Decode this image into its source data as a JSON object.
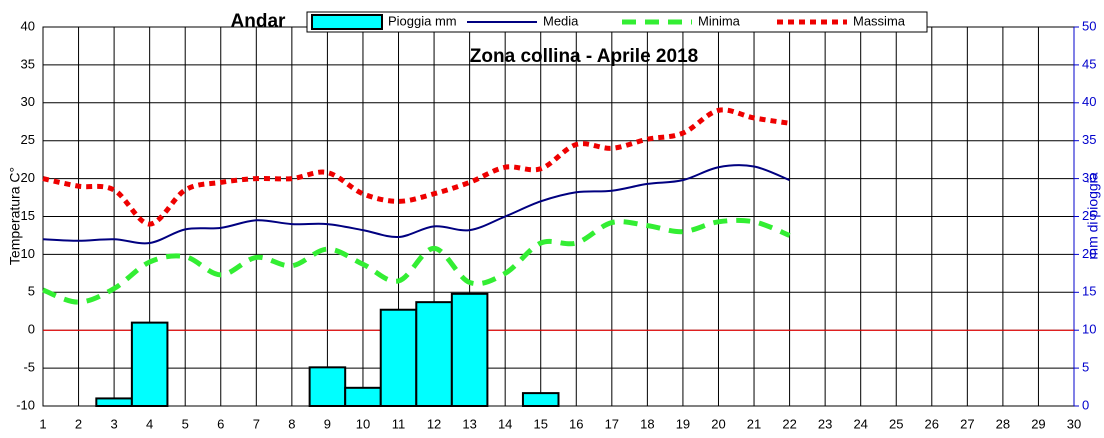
{
  "chart_data": {
    "type": "combo",
    "title": "Andar",
    "subtitle": "Zona collina - Aprile 2018",
    "ylabel": "Temperatura C°",
    "y2label": "mm di pioggia",
    "x": [
      1,
      2,
      3,
      4,
      5,
      6,
      7,
      8,
      9,
      10,
      11,
      12,
      13,
      14,
      15,
      16,
      17,
      18,
      19,
      20,
      21,
      22,
      23,
      24,
      25,
      26,
      27,
      28,
      29,
      30
    ],
    "xlim": [
      1,
      30
    ],
    "ylim": [
      -10,
      40
    ],
    "yticks": [
      -10,
      -5,
      0,
      5,
      10,
      15,
      20,
      25,
      30,
      35,
      40
    ],
    "y2lim": [
      0,
      50
    ],
    "y2ticks": [
      0,
      5,
      10,
      15,
      20,
      25,
      30,
      35,
      40,
      45,
      50
    ],
    "grid": true,
    "zero_line_color": "#ff0000",
    "legend": "top",
    "series": [
      {
        "name": "Pioggia mm",
        "kind": "bar",
        "axis": "y2",
        "color": "#00ffff",
        "values": [
          null,
          null,
          1,
          11,
          null,
          null,
          null,
          null,
          5.1,
          2.4,
          12.7,
          13.7,
          14.8,
          null,
          1.7,
          null,
          null,
          null,
          null,
          null,
          null,
          null,
          null,
          null,
          null,
          null,
          null,
          null,
          null,
          null
        ]
      },
      {
        "name": "Media",
        "kind": "line",
        "color": "#000080",
        "values": [
          12,
          11.8,
          12,
          11.5,
          13.3,
          13.5,
          14.5,
          14,
          14,
          13.2,
          12.3,
          13.7,
          13.2,
          15,
          17,
          18.2,
          18.4,
          19.3,
          19.8,
          21.5,
          21.6,
          19.8,
          null,
          null,
          null,
          null,
          null,
          null,
          null,
          null
        ]
      },
      {
        "name": "Minima",
        "kind": "line",
        "dash": "14,9",
        "color": "#33ee33",
        "values": [
          5.3,
          3.7,
          5.5,
          9,
          9.7,
          7.3,
          9.6,
          8.5,
          10.7,
          8.7,
          6.5,
          10.8,
          6.3,
          7.5,
          11.5,
          11.5,
          14.2,
          13.8,
          13,
          14.3,
          14.3,
          12.5,
          null,
          null,
          null,
          null,
          null,
          null,
          null,
          null
        ]
      },
      {
        "name": "Massima",
        "kind": "line",
        "dash": "6,5",
        "color": "#ee0000",
        "values": [
          20,
          19,
          18.5,
          14,
          18.5,
          19.5,
          20,
          20,
          20.8,
          18,
          17,
          18,
          19.5,
          21.5,
          21.3,
          24.5,
          24,
          25.2,
          26,
          29,
          28,
          27.3,
          null,
          null,
          null,
          null,
          null,
          null,
          null,
          null
        ]
      }
    ]
  }
}
